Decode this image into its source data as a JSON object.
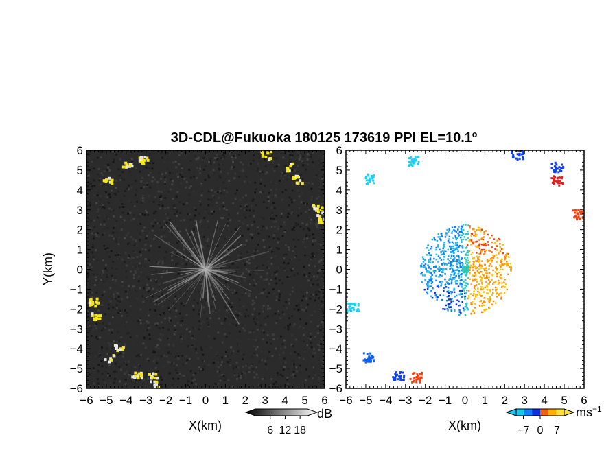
{
  "chart_data": {
    "title": "3D-CDL@Fukuoka 180125 173619 PPI EL=10.1º",
    "panels": [
      {
        "type": "heatmap",
        "name": "reflectivity",
        "xlabel": "X(km)",
        "ylabel": "Y(km)",
        "xlim": [
          -6,
          6
        ],
        "ylim": [
          -6,
          6
        ],
        "xticks": [
          "−6",
          "−5",
          "−4",
          "−3",
          "−2",
          "−1",
          "0",
          "1",
          "2",
          "3",
          "4",
          "5",
          "6"
        ],
        "yticks": [
          "−6",
          "−5",
          "−4",
          "−3",
          "−2",
          "−1",
          "0",
          "1",
          "2",
          "3",
          "4",
          "5",
          "6"
        ],
        "background": "#2a2a2a",
        "highlight_color": "#f5e51b",
        "colorbar": {
          "unit": "dB",
          "ticks": [
            "6",
            "12",
            "18"
          ],
          "tick_values": [
            6,
            12,
            18
          ],
          "range": [
            0,
            21
          ]
        }
      },
      {
        "type": "scatter",
        "name": "doppler-velocity",
        "xlabel": "X(km)",
        "xlim": [
          -6,
          6
        ],
        "ylim": [
          -6,
          6
        ],
        "xticks": [
          "−6",
          "−5",
          "−4",
          "−3",
          "−2",
          "−1",
          "0",
          "1",
          "2",
          "3",
          "4",
          "5",
          "6"
        ],
        "yticks": [
          "−6",
          "−5",
          "−4",
          "−3",
          "−2",
          "−1",
          "0",
          "1",
          "2",
          "3",
          "4",
          "5",
          "6"
        ],
        "colorbar": {
          "unit": "ms",
          "unit_sup": "−1",
          "ticks": [
            "−7",
            "0",
            "7"
          ],
          "tick_values": [
            -7,
            0,
            7
          ],
          "range": [
            -10,
            10
          ],
          "colors": [
            "#18c8f0",
            "#1080ff",
            "#1030e0",
            "#f06010",
            "#ffb000",
            "#ffe040"
          ]
        },
        "clusters": [
          {
            "x": -2.6,
            "y": 5.5,
            "color": "#20d0f0"
          },
          {
            "x": -4.9,
            "y": 4.6,
            "color": "#20d0f0"
          },
          {
            "x": -5.7,
            "y": -1.9,
            "color": "#20d0f0"
          },
          {
            "x": 2.6,
            "y": 5.8,
            "color": "#1040f0"
          },
          {
            "x": 4.6,
            "y": 5.2,
            "color": "#1040f0"
          },
          {
            "x": 4.6,
            "y": 4.5,
            "color": "#e02020"
          },
          {
            "x": 5.7,
            "y": 2.8,
            "color": "#f04010"
          },
          {
            "x": -4.9,
            "y": -4.4,
            "color": "#1060f0"
          },
          {
            "x": -3.4,
            "y": -5.3,
            "color": "#1040f0"
          },
          {
            "x": -2.5,
            "y": -5.4,
            "color": "#f04010"
          }
        ]
      }
    ]
  }
}
